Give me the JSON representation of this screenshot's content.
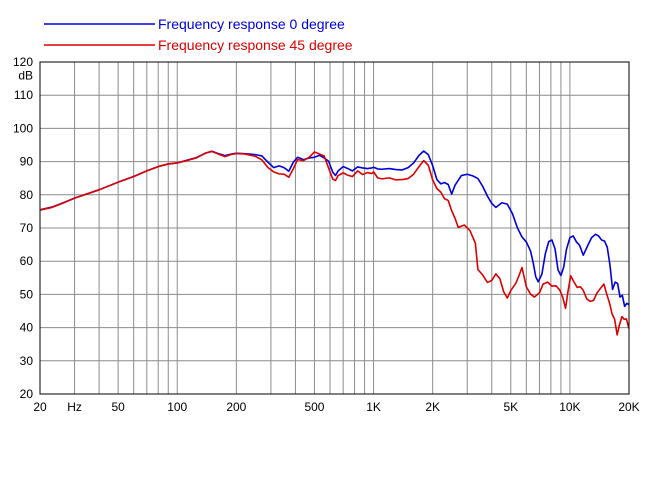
{
  "chart_data": {
    "type": "line",
    "title": "",
    "xlabel": "",
    "ylabel": "dB",
    "x_scale": "log",
    "xlim": [
      20,
      20000
    ],
    "ylim": [
      20,
      120
    ],
    "grid": true,
    "legend_position": "top-left",
    "x_tick_values": [
      20,
      30,
      40,
      50,
      60,
      70,
      80,
      90,
      100,
      200,
      300,
      400,
      500,
      600,
      700,
      800,
      900,
      1000,
      2000,
      3000,
      4000,
      5000,
      6000,
      7000,
      8000,
      9000,
      10000,
      20000
    ],
    "x_tick_labels": [
      {
        "x": 20,
        "label": "20"
      },
      {
        "x": 30,
        "label": "Hz"
      },
      {
        "x": 50,
        "label": "50"
      },
      {
        "x": 100,
        "label": "100"
      },
      {
        "x": 200,
        "label": "200"
      },
      {
        "x": 500,
        "label": "500"
      },
      {
        "x": 1000,
        "label": "1K"
      },
      {
        "x": 2000,
        "label": "2K"
      },
      {
        "x": 5000,
        "label": "5K"
      },
      {
        "x": 10000,
        "label": "10K"
      },
      {
        "x": 20000,
        "label": "20K"
      }
    ],
    "y_tick_labels": [
      {
        "y": 20,
        "label": "20"
      },
      {
        "y": 30,
        "label": "30"
      },
      {
        "y": 40,
        "label": "40"
      },
      {
        "y": 50,
        "label": "50"
      },
      {
        "y": 60,
        "label": "60"
      },
      {
        "y": 70,
        "label": "70"
      },
      {
        "y": 80,
        "label": "80"
      },
      {
        "y": 90,
        "label": "90"
      },
      {
        "y": 100,
        "label": "100"
      },
      {
        "y": 110,
        "label": "110"
      },
      {
        "y": 120,
        "label": "120"
      }
    ],
    "series": [
      {
        "name": "Frequency response 0 degree",
        "color": "#0000dd",
        "points": [
          [
            20,
            75.5
          ],
          [
            23,
            76.3
          ],
          [
            26,
            77.5
          ],
          [
            30,
            79
          ],
          [
            40,
            81.5
          ],
          [
            50,
            83.8
          ],
          [
            60,
            85.5
          ],
          [
            70,
            87.2
          ],
          [
            80,
            88.5
          ],
          [
            90,
            89.3
          ],
          [
            100,
            89.6
          ],
          [
            110,
            90.3
          ],
          [
            125,
            91.2
          ],
          [
            140,
            92.6
          ],
          [
            150,
            93.1
          ],
          [
            160,
            92.5
          ],
          [
            175,
            91.8
          ],
          [
            190,
            92.3
          ],
          [
            200,
            92.5
          ],
          [
            220,
            92.4
          ],
          [
            250,
            92.1
          ],
          [
            270,
            91.7
          ],
          [
            290,
            89.8
          ],
          [
            310,
            88.2
          ],
          [
            330,
            88.7
          ],
          [
            350,
            88.2
          ],
          [
            370,
            87.1
          ],
          [
            390,
            89.8
          ],
          [
            410,
            91.3
          ],
          [
            440,
            90.6
          ],
          [
            470,
            91.1
          ],
          [
            500,
            91.3
          ],
          [
            530,
            91.9
          ],
          [
            560,
            91.1
          ],
          [
            590,
            90.1
          ],
          [
            620,
            86.8
          ],
          [
            640,
            85.8
          ],
          [
            660,
            87.2
          ],
          [
            700,
            88.5
          ],
          [
            740,
            87.9
          ],
          [
            780,
            87.2
          ],
          [
            830,
            88.4
          ],
          [
            880,
            88.1
          ],
          [
            930,
            87.9
          ],
          [
            980,
            88.1
          ],
          [
            1000,
            88.3
          ],
          [
            1050,
            87.8
          ],
          [
            1100,
            87.7
          ],
          [
            1200,
            87.9
          ],
          [
            1300,
            87.6
          ],
          [
            1400,
            87.5
          ],
          [
            1500,
            88.2
          ],
          [
            1600,
            89.6
          ],
          [
            1700,
            91.8
          ],
          [
            1800,
            93.2
          ],
          [
            1900,
            92.1
          ],
          [
            2000,
            88.8
          ],
          [
            2100,
            84.6
          ],
          [
            2200,
            83.3
          ],
          [
            2300,
            83.7
          ],
          [
            2400,
            83.1
          ],
          [
            2500,
            80.2
          ],
          [
            2600,
            82.9
          ],
          [
            2800,
            85.8
          ],
          [
            3000,
            86.2
          ],
          [
            3200,
            85.7
          ],
          [
            3400,
            84.9
          ],
          [
            3600,
            82.5
          ],
          [
            3800,
            79.6
          ],
          [
            4000,
            77.4
          ],
          [
            4200,
            76.2
          ],
          [
            4500,
            77.6
          ],
          [
            4800,
            77.2
          ],
          [
            5100,
            74.3
          ],
          [
            5400,
            70.1
          ],
          [
            5700,
            67.3
          ],
          [
            6000,
            65.8
          ],
          [
            6300,
            63.1
          ],
          [
            6500,
            59.6
          ],
          [
            6700,
            55.3
          ],
          [
            6900,
            53.8
          ],
          [
            7200,
            56.1
          ],
          [
            7500,
            62.3
          ],
          [
            7800,
            65.9
          ],
          [
            8100,
            66.4
          ],
          [
            8400,
            63.7
          ],
          [
            8700,
            57.4
          ],
          [
            9000,
            55.7
          ],
          [
            9300,
            58.2
          ],
          [
            9600,
            63.5
          ],
          [
            10000,
            67.1
          ],
          [
            10400,
            67.6
          ],
          [
            10800,
            65.8
          ],
          [
            11200,
            64.8
          ],
          [
            11700,
            61.8
          ],
          [
            12300,
            64.6
          ],
          [
            12900,
            67.1
          ],
          [
            13500,
            68.1
          ],
          [
            14000,
            67.6
          ],
          [
            14500,
            66.4
          ],
          [
            15000,
            66.1
          ],
          [
            15500,
            64.2
          ],
          [
            16000,
            58.8
          ],
          [
            16500,
            51.5
          ],
          [
            17000,
            53.7
          ],
          [
            17500,
            53.3
          ],
          [
            18000,
            49.2
          ],
          [
            18500,
            49.7
          ],
          [
            19000,
            46.4
          ],
          [
            19500,
            47.3
          ],
          [
            20000,
            46.9
          ]
        ]
      },
      {
        "name": "Frequency response 45 degree",
        "color": "#dd0000",
        "points": [
          [
            20,
            75.4
          ],
          [
            23,
            76.2
          ],
          [
            26,
            77.4
          ],
          [
            30,
            79
          ],
          [
            40,
            81.5
          ],
          [
            50,
            83.8
          ],
          [
            60,
            85.5
          ],
          [
            70,
            87.2
          ],
          [
            80,
            88.5
          ],
          [
            90,
            89.3
          ],
          [
            100,
            89.6
          ],
          [
            110,
            90.2
          ],
          [
            125,
            91.1
          ],
          [
            140,
            92.6
          ],
          [
            150,
            93.1
          ],
          [
            160,
            92.4
          ],
          [
            175,
            91.5
          ],
          [
            190,
            92.2
          ],
          [
            200,
            92.4
          ],
          [
            220,
            92.3
          ],
          [
            250,
            91.6
          ],
          [
            270,
            90.5
          ],
          [
            290,
            88.2
          ],
          [
            310,
            86.9
          ],
          [
            330,
            86.3
          ],
          [
            350,
            86.2
          ],
          [
            370,
            85.3
          ],
          [
            390,
            87.8
          ],
          [
            410,
            90.6
          ],
          [
            440,
            90.3
          ],
          [
            470,
            91.3
          ],
          [
            500,
            92.9
          ],
          [
            530,
            92.3
          ],
          [
            560,
            91.7
          ],
          [
            590,
            88.1
          ],
          [
            620,
            84.7
          ],
          [
            640,
            84.3
          ],
          [
            660,
            85.8
          ],
          [
            700,
            86.6
          ],
          [
            740,
            85.9
          ],
          [
            780,
            85.5
          ],
          [
            830,
            87.2
          ],
          [
            880,
            86.1
          ],
          [
            930,
            86.7
          ],
          [
            980,
            86.4
          ],
          [
            1000,
            86.9
          ],
          [
            1050,
            85.1
          ],
          [
            1100,
            84.8
          ],
          [
            1200,
            85.1
          ],
          [
            1300,
            84.5
          ],
          [
            1400,
            84.6
          ],
          [
            1500,
            84.9
          ],
          [
            1600,
            86.2
          ],
          [
            1700,
            88.4
          ],
          [
            1800,
            90.3
          ],
          [
            1900,
            88.9
          ],
          [
            2000,
            84.5
          ],
          [
            2100,
            81.9
          ],
          [
            2200,
            80.8
          ],
          [
            2300,
            78.8
          ],
          [
            2400,
            78.3
          ],
          [
            2500,
            75.2
          ],
          [
            2600,
            72.9
          ],
          [
            2700,
            70.2
          ],
          [
            2900,
            70.9
          ],
          [
            3100,
            69.2
          ],
          [
            3300,
            65.4
          ],
          [
            3400,
            57.5
          ],
          [
            3600,
            55.8
          ],
          [
            3800,
            53.6
          ],
          [
            4000,
            54.2
          ],
          [
            4200,
            56.2
          ],
          [
            4400,
            54.7
          ],
          [
            4600,
            50.8
          ],
          [
            4800,
            48.9
          ],
          [
            5000,
            51.2
          ],
          [
            5300,
            53.3
          ],
          [
            5500,
            55.6
          ],
          [
            5700,
            58.1
          ],
          [
            6000,
            52.3
          ],
          [
            6300,
            50.1
          ],
          [
            6600,
            49.2
          ],
          [
            7000,
            50.5
          ],
          [
            7300,
            53.1
          ],
          [
            7700,
            53.7
          ],
          [
            8100,
            52.5
          ],
          [
            8500,
            52.6
          ],
          [
            8900,
            51.2
          ],
          [
            9200,
            49.1
          ],
          [
            9500,
            45.8
          ],
          [
            9800,
            51.3
          ],
          [
            10100,
            55.6
          ],
          [
            10500,
            53.7
          ],
          [
            10900,
            52.1
          ],
          [
            11300,
            52.3
          ],
          [
            11700,
            51.2
          ],
          [
            12200,
            48.6
          ],
          [
            12700,
            47.9
          ],
          [
            13200,
            48.2
          ],
          [
            13700,
            50.3
          ],
          [
            14300,
            51.8
          ],
          [
            14900,
            53.1
          ],
          [
            15400,
            50.1
          ],
          [
            15900,
            47.5
          ],
          [
            16400,
            44.1
          ],
          [
            16900,
            42.5
          ],
          [
            17400,
            37.8
          ],
          [
            17900,
            40.9
          ],
          [
            18400,
            43.3
          ],
          [
            18900,
            42.5
          ],
          [
            19400,
            42.6
          ],
          [
            20000,
            39.7
          ]
        ]
      }
    ]
  }
}
